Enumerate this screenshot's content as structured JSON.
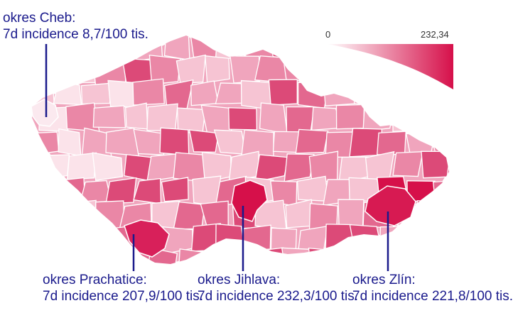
{
  "legend": {
    "min_label": "0",
    "max_label": "232,34",
    "min_value": 0,
    "max_value": 232.34,
    "color_low": "#ffffff",
    "color_high": "#d6104a"
  },
  "callouts": [
    {
      "id": "cheb",
      "line1": "okres Cheb:",
      "line2": "7d incidence 8,7/100 tis.",
      "value": 8.7
    },
    {
      "id": "prachatice",
      "line1": "okres Prachatice:",
      "line2": "7d incidence 207,9/100 tis.",
      "value": 207.9
    },
    {
      "id": "jihlava",
      "line1": "okres Jihlava:",
      "line2": "7d incidence 232,3/100 tis.",
      "value": 232.3
    },
    {
      "id": "zlin",
      "line1": "okres Zlín:",
      "line2": "7d incidence 221,8/100 tis.",
      "value": 221.8
    }
  ],
  "colors": {
    "border": "#ffffff",
    "callout_line": "#1a1a8c",
    "cell_shades": [
      "#fbe3ea",
      "#f6c4d3",
      "#f0a5bd",
      "#ea87a6",
      "#e3688f",
      "#dc4a78",
      "#d6104a"
    ]
  }
}
